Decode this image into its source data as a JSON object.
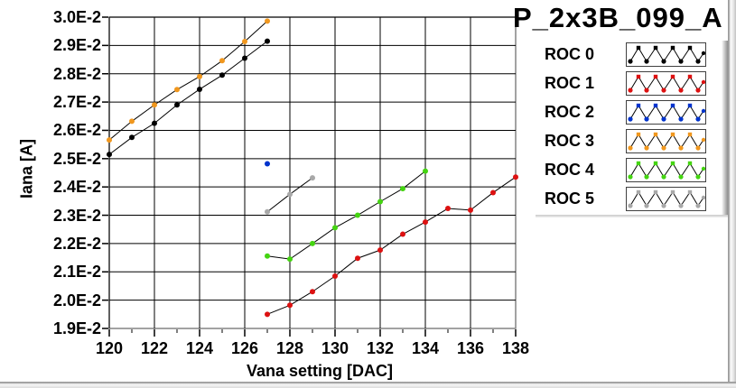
{
  "title": "P_2x3B_099_A",
  "chart_data": {
    "type": "line",
    "title": "P_2x3B_099_A",
    "xlabel": "Vana setting [DAC]",
    "ylabel": "Iana [A]",
    "xlim": [
      120,
      138
    ],
    "ylim": [
      0.019,
      0.03
    ],
    "grid": true,
    "legend_position": "right",
    "line_color": "#000000",
    "frame_color": "#848484",
    "xticks": {
      "values": [
        120,
        122,
        124,
        126,
        128,
        130,
        132,
        134,
        136,
        138
      ],
      "labels": [
        "120",
        "122",
        "124",
        "126",
        "128",
        "130",
        "132",
        "134",
        "136",
        "138"
      ]
    },
    "xticks_minor": [
      121,
      123,
      125,
      127,
      129,
      131,
      133,
      135,
      137
    ],
    "yticks": {
      "values": [
        0.03,
        0.029,
        0.028,
        0.027,
        0.026,
        0.025,
        0.024,
        0.023,
        0.022,
        0.021,
        0.02,
        0.019
      ],
      "labels": [
        "3.0E-2",
        "2.9E-2",
        "2.8E-2",
        "2.7E-2",
        "2.6E-2",
        "2.5E-2",
        "2.4E-2",
        "2.3E-2",
        "2.2E-2",
        "2.1E-2",
        "2.0E-2",
        "1.9E-2"
      ]
    },
    "x_gridlines": [
      120,
      122,
      124,
      126,
      128,
      130,
      132,
      134,
      136
    ],
    "y_gridlines": [
      0.03,
      0.029,
      0.028,
      0.027,
      0.026,
      0.025,
      0.024,
      0.023,
      0.022,
      0.021,
      0.02
    ],
    "series": [
      {
        "name": "ROC 0",
        "color": "#000000",
        "x": [
          120,
          121,
          122,
          123,
          124,
          125,
          126,
          127
        ],
        "y": [
          0.02515,
          0.02575,
          0.02625,
          0.0269,
          0.02745,
          0.02795,
          0.02855,
          0.02915
        ]
      },
      {
        "name": "ROC 1",
        "color": "#dd1111",
        "x": [
          127,
          128,
          129,
          130,
          131,
          132,
          133,
          134,
          135,
          136,
          137,
          138
        ],
        "y": [
          0.0195,
          0.01982,
          0.0203,
          0.02085,
          0.02148,
          0.02177,
          0.02233,
          0.02276,
          0.02324,
          0.02318,
          0.0238,
          0.02435
        ]
      },
      {
        "name": "ROC 2",
        "color": "#0033cc",
        "x": [
          127
        ],
        "y": [
          0.02482
        ]
      },
      {
        "name": "ROC 3",
        "color": "#f0971e",
        "x": [
          120,
          121,
          122,
          123,
          124,
          125,
          126,
          127
        ],
        "y": [
          0.02566,
          0.02632,
          0.0269,
          0.02744,
          0.0279,
          0.02846,
          0.02914,
          0.02986
        ]
      },
      {
        "name": "ROC 4",
        "color": "#44d411",
        "x": [
          127,
          128,
          129,
          130,
          131,
          132,
          133,
          134
        ],
        "y": [
          0.02156,
          0.02145,
          0.022,
          0.02256,
          0.023,
          0.02348,
          0.02394,
          0.02456
        ]
      },
      {
        "name": "ROC 5",
        "color": "#a8a8a8",
        "x": [
          127,
          128,
          129
        ],
        "y": [
          0.02312,
          0.02374,
          0.02432
        ]
      }
    ]
  },
  "legend": {
    "items": [
      {
        "label": "ROC 0",
        "color": "#000000"
      },
      {
        "label": "ROC 1",
        "color": "#dd1111"
      },
      {
        "label": "ROC 2",
        "color": "#0033cc"
      },
      {
        "label": "ROC 3",
        "color": "#f0971e"
      },
      {
        "label": "ROC 4",
        "color": "#44d411"
      },
      {
        "label": "ROC 5",
        "color": "#a8a8a8"
      }
    ]
  }
}
